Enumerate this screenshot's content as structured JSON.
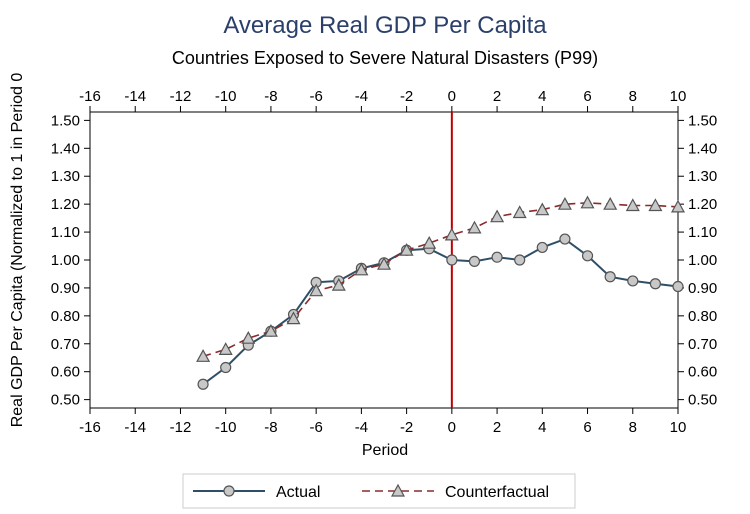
{
  "chart_data": {
    "type": "line",
    "title": "Average Real GDP Per Capita",
    "subtitle": "Countries Exposed to Severe Natural Disasters (P99)",
    "xlabel": "Period",
    "ylabel": "Real GDP Per Capita (Normalized to 1 in Period 0",
    "xlim": [
      -16,
      10
    ],
    "ylim": [
      0.47,
      1.53
    ],
    "xticks": [
      -16,
      -14,
      -12,
      -10,
      -8,
      -6,
      -4,
      -2,
      0,
      2,
      4,
      6,
      8,
      10
    ],
    "yticks": [
      0.5,
      0.6,
      0.7,
      0.8,
      0.9,
      1.0,
      1.1,
      1.2,
      1.3,
      1.4,
      1.5
    ],
    "ytick_labels": [
      "0.50",
      "0.60",
      "0.70",
      "0.80",
      "0.90",
      "1.00",
      "1.10",
      "1.20",
      "1.30",
      "1.40",
      "1.50"
    ],
    "mirror_axes": true,
    "vertical_reference_line": {
      "x": 0,
      "color": "#c00000"
    },
    "legend_position": "bottom",
    "series": [
      {
        "name": "Actual",
        "color": "#2f4f66",
        "marker": "circle",
        "dash": "solid",
        "x": [
          -11,
          -10,
          -9,
          -8,
          -7,
          -6,
          -5,
          -4,
          -3,
          -2,
          -1,
          0,
          1,
          2,
          3,
          4,
          5,
          6,
          7,
          8,
          9,
          10
        ],
        "values": [
          0.555,
          0.615,
          0.695,
          0.745,
          0.805,
          0.92,
          0.925,
          0.97,
          0.99,
          1.035,
          1.04,
          1.0,
          0.995,
          1.01,
          1.0,
          1.045,
          1.075,
          1.015,
          0.94,
          0.925,
          0.915,
          0.905
        ]
      },
      {
        "name": "Counterfactual",
        "color": "#8b2a2a",
        "marker": "triangle",
        "dash": "dashed",
        "x": [
          -11,
          -10,
          -9,
          -8,
          -7,
          -6,
          -5,
          -4,
          -3,
          -2,
          -1,
          0,
          1,
          2,
          3,
          4,
          5,
          6,
          7,
          8,
          9,
          10
        ],
        "values": [
          0.655,
          0.68,
          0.72,
          0.745,
          0.79,
          0.89,
          0.91,
          0.965,
          0.985,
          1.035,
          1.06,
          1.09,
          1.115,
          1.155,
          1.17,
          1.18,
          1.2,
          1.205,
          1.2,
          1.195,
          1.195,
          1.19
        ]
      }
    ]
  }
}
